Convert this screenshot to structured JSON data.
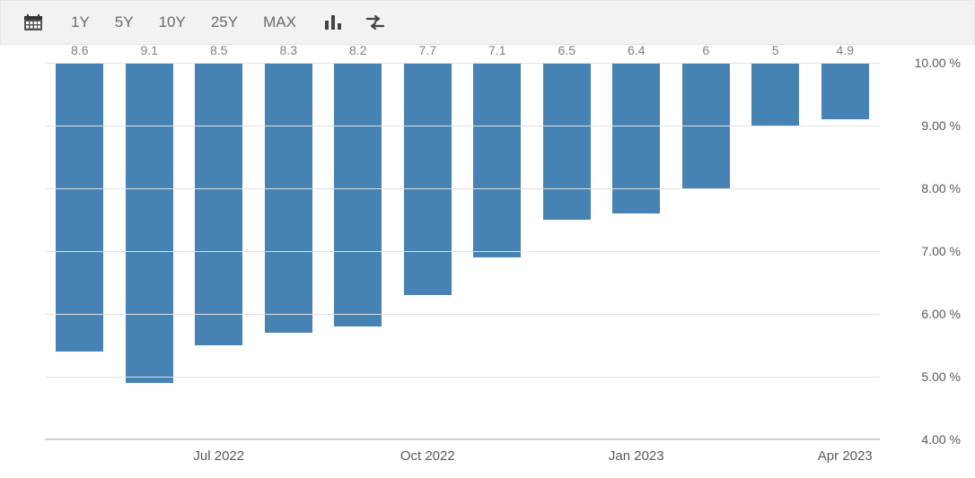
{
  "toolbar": {
    "ranges": [
      "1Y",
      "5Y",
      "10Y",
      "25Y",
      "MAX"
    ]
  },
  "chart": {
    "type": "bar",
    "bar_color": "#4682b4",
    "grid_color": "#e0e0e0",
    "label_color": "#808080",
    "axis_label_color": "#595959",
    "label_fontsize": 14,
    "axis_fontsize": 15,
    "ylim_min": 4.0,
    "ylim_max": 10.0,
    "ytick_step": 1.0,
    "yaxis_suffix": " %",
    "bar_width_ratio": 0.68,
    "bars": [
      {
        "value": 8.6,
        "label": "8.6",
        "xlabel": ""
      },
      {
        "value": 9.1,
        "label": "9.1",
        "xlabel": ""
      },
      {
        "value": 8.5,
        "label": "8.5",
        "xlabel": "Jul 2022"
      },
      {
        "value": 8.3,
        "label": "8.3",
        "xlabel": ""
      },
      {
        "value": 8.2,
        "label": "8.2",
        "xlabel": ""
      },
      {
        "value": 7.7,
        "label": "7.7",
        "xlabel": "Oct 2022"
      },
      {
        "value": 7.1,
        "label": "7.1",
        "xlabel": ""
      },
      {
        "value": 6.5,
        "label": "6.5",
        "xlabel": ""
      },
      {
        "value": 6.4,
        "label": "6.4",
        "xlabel": "Jan 2023"
      },
      {
        "value": 6.0,
        "label": "6",
        "xlabel": ""
      },
      {
        "value": 5.0,
        "label": "5",
        "xlabel": ""
      },
      {
        "value": 4.9,
        "label": "4.9",
        "xlabel": "Apr 2023"
      }
    ],
    "yticks": [
      {
        "value": 10.0,
        "label": "10.00 %"
      },
      {
        "value": 9.0,
        "label": "9.00 %"
      },
      {
        "value": 8.0,
        "label": "8.00 %"
      },
      {
        "value": 7.0,
        "label": "7.00 %"
      },
      {
        "value": 6.0,
        "label": "6.00 %"
      },
      {
        "value": 5.0,
        "label": "5.00 %"
      },
      {
        "value": 4.0,
        "label": "4.00 %"
      }
    ]
  }
}
